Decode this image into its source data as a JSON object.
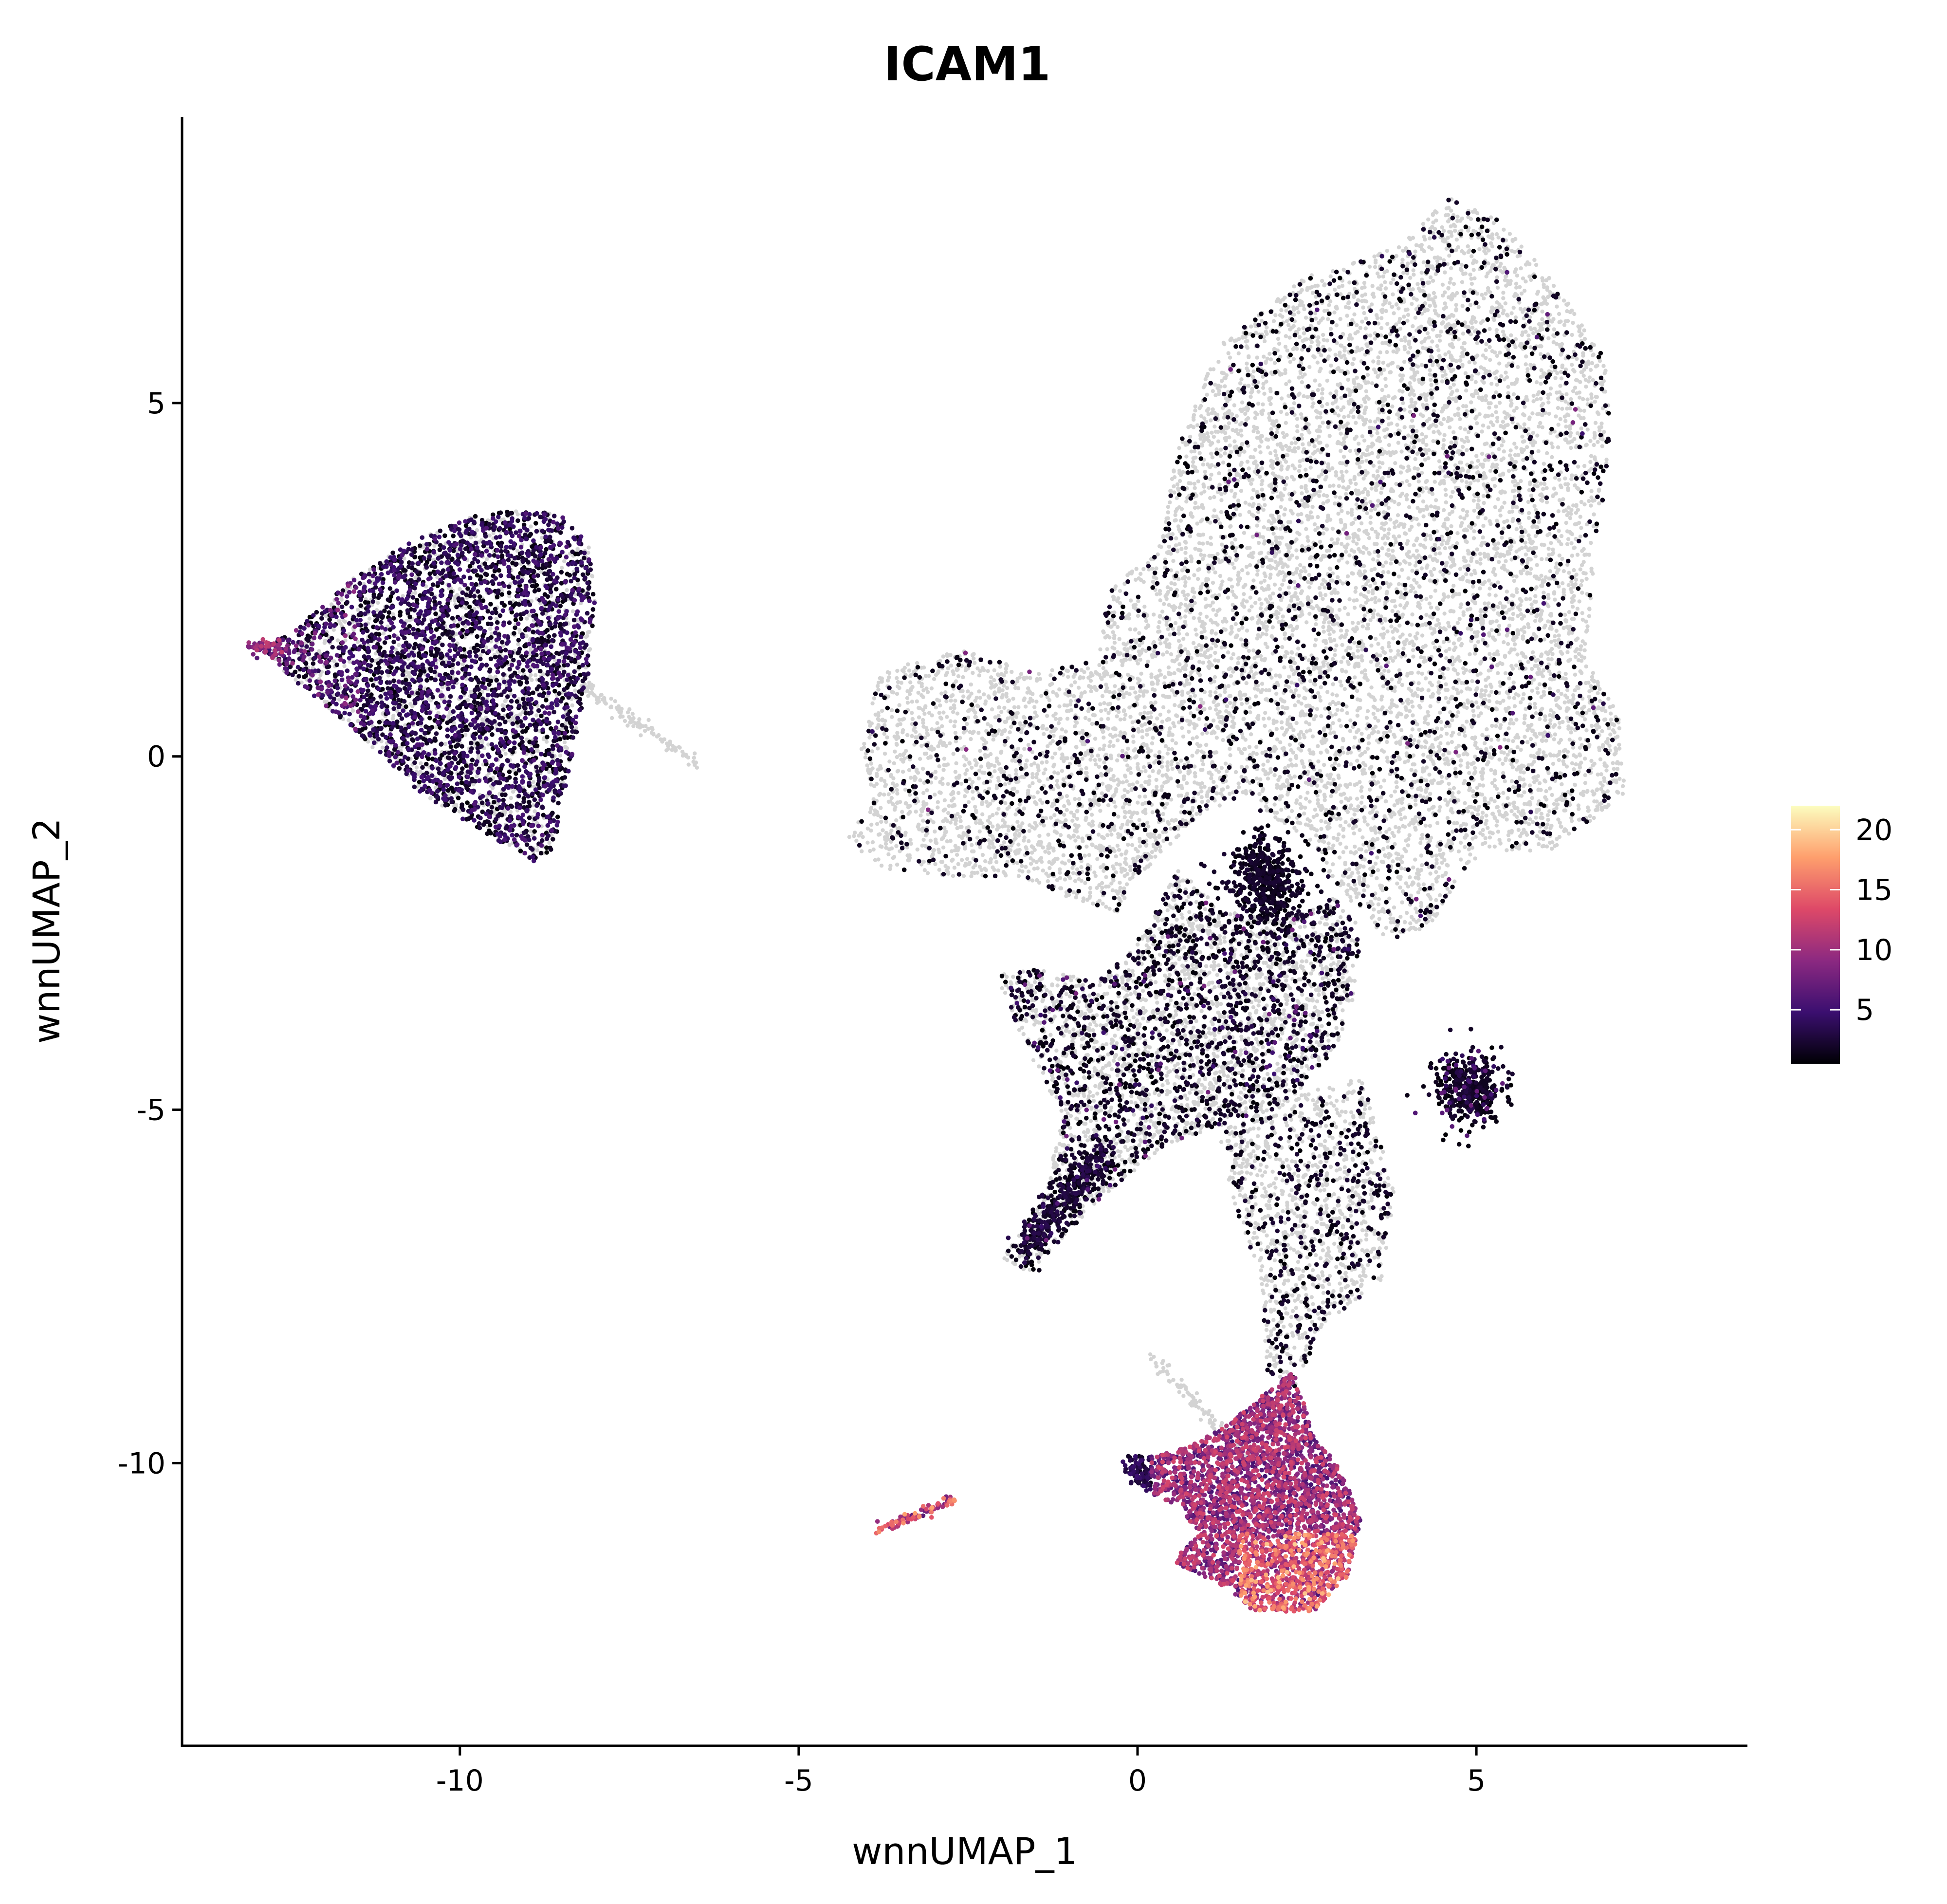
{
  "chart_data": {
    "type": "scatter",
    "title": "ICAM1",
    "xlabel": "wnnUMAP_1",
    "ylabel": "wnnUMAP_2",
    "xlim": [
      -14.1,
      9.0
    ],
    "ylim": [
      -14.0,
      9.05
    ],
    "x_ticks": [
      {
        "value": -10,
        "label": "-10"
      },
      {
        "value": -5,
        "label": "-5"
      },
      {
        "value": 0,
        "label": "0"
      },
      {
        "value": 5,
        "label": "5"
      }
    ],
    "y_ticks": [
      {
        "value": 5,
        "label": "5"
      },
      {
        "value": 0,
        "label": "0"
      },
      {
        "value": -5,
        "label": "-5"
      },
      {
        "value": -10,
        "label": "-10"
      }
    ],
    "grid": false,
    "legend": {
      "position": "right",
      "title": "",
      "min": 0.5,
      "max": 22,
      "ticks": [
        {
          "value": 5,
          "label": "5"
        },
        {
          "value": 10,
          "label": "10"
        },
        {
          "value": 15,
          "label": "15"
        },
        {
          "value": 20,
          "label": "20"
        }
      ]
    },
    "colors": {
      "zero_expression": "#d3d3d3",
      "colormap": [
        "#000004",
        "#3b0f70",
        "#8c2981",
        "#de4968",
        "#fe9f6d",
        "#fcfdbf"
      ]
    },
    "clusters": [
      {
        "id": "left-cluster",
        "x": [
          -12.9,
          -8.0
        ],
        "y": [
          -1.6,
          3.5
        ],
        "mean_expression": 3.2
      },
      {
        "id": "left-tail",
        "x": [
          -8.2,
          -6.5
        ],
        "y": [
          -0.2,
          1.2
        ],
        "mean_expression": 0.2
      },
      {
        "id": "upper-right-mass",
        "x": [
          -4.3,
          7.2
        ],
        "y": [
          -3.0,
          7.9
        ],
        "mean_expression": 0.7
      },
      {
        "id": "central-band",
        "x": [
          -2.0,
          3.3
        ],
        "y": [
          -7.3,
          -1.5
        ],
        "mean_expression": 1.5
      },
      {
        "id": "right-blob",
        "x": [
          4.3,
          5.4
        ],
        "y": [
          -5.3,
          -4.1
        ],
        "mean_expression": 1.6
      },
      {
        "id": "stem",
        "x": [
          1.5,
          3.8
        ],
        "y": [
          -9.0,
          -5.0
        ],
        "mean_expression": 0.6
      },
      {
        "id": "bottom-cluster",
        "x": [
          -0.3,
          3.3
        ],
        "y": [
          -12.1,
          -8.5
        ],
        "mean_expression": 9.5
      },
      {
        "id": "small-streak",
        "x": [
          -3.8,
          -2.6
        ],
        "y": [
          -11.0,
          -10.4
        ],
        "mean_expression": 11.0
      }
    ]
  }
}
